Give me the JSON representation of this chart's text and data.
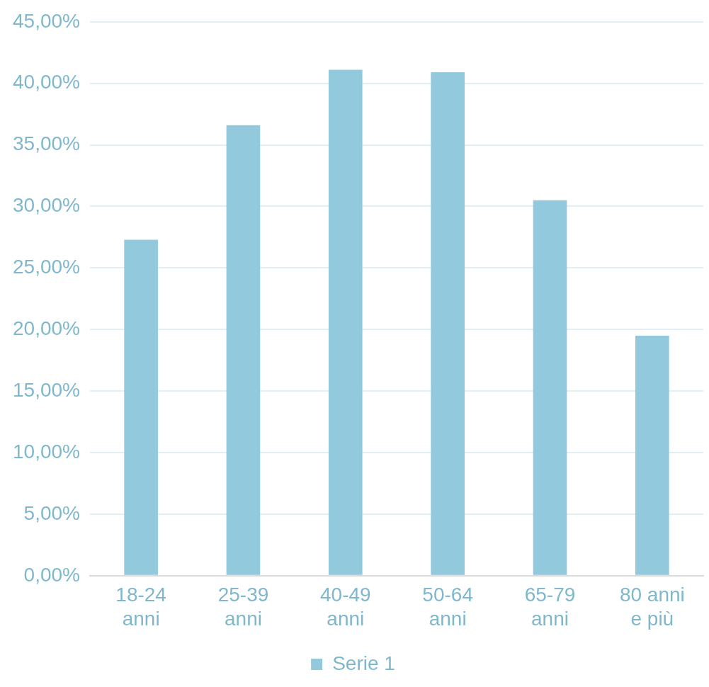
{
  "chart_data": {
    "type": "bar",
    "categories": [
      "18-24 anni",
      "25-39 anni",
      "40-49 anni",
      "50-64 anni",
      "65-79 anni",
      "80 anni e più"
    ],
    "series": [
      {
        "name": "Serie 1",
        "color": "#92c9dc",
        "values": [
          27.3,
          36.6,
          41.1,
          40.9,
          30.5,
          19.5
        ]
      }
    ],
    "ylim": [
      0,
      45
    ],
    "yticks": [
      {
        "value": 0,
        "label": "0,00%"
      },
      {
        "value": 5,
        "label": "5,00%"
      },
      {
        "value": 10,
        "label": "10,00%"
      },
      {
        "value": 15,
        "label": "15,00%"
      },
      {
        "value": 20,
        "label": "20,00%"
      },
      {
        "value": 25,
        "label": "25,00%"
      },
      {
        "value": 30,
        "label": "30,00%"
      },
      {
        "value": 35,
        "label": "35,00%"
      },
      {
        "value": 40,
        "label": "40,00%"
      },
      {
        "value": 45,
        "label": "45,00%"
      }
    ],
    "grid": "y",
    "legend": "bottom"
  }
}
